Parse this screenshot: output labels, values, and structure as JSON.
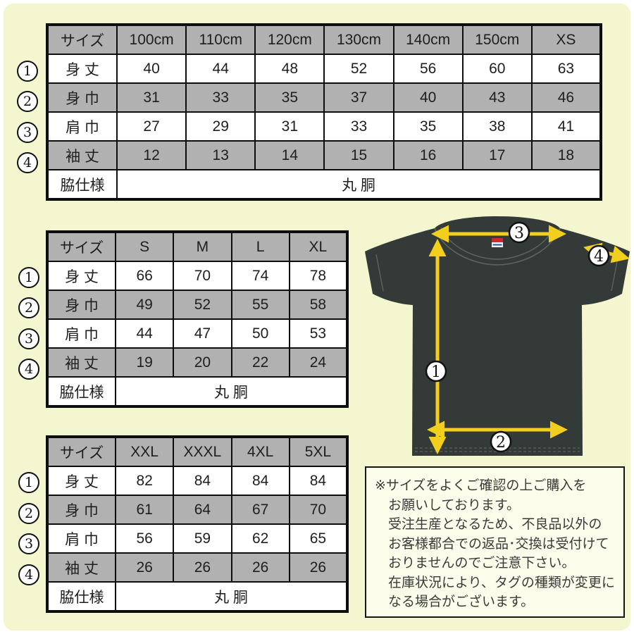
{
  "page": {
    "background_color": "#f4f6cf",
    "table_header_color": "#b1b1b1",
    "arrow_color": "#f2ce1d",
    "shirt_color": "#343a38"
  },
  "callout_digits": [
    "1",
    "2",
    "3",
    "4"
  ],
  "size_charts": [
    {
      "name": "kids-sizes",
      "columns": [
        "サイズ",
        "100cm",
        "110cm",
        "120cm",
        "130cm",
        "140cm",
        "150cm",
        "XS"
      ],
      "rows": [
        {
          "callout": "1",
          "label": "身 丈",
          "values": [
            "40",
            "44",
            "48",
            "52",
            "56",
            "60",
            "63"
          ]
        },
        {
          "callout": "2",
          "label": "身 巾",
          "values": [
            "31",
            "33",
            "35",
            "37",
            "40",
            "43",
            "46"
          ]
        },
        {
          "callout": "3",
          "label": "肩 巾",
          "values": [
            "27",
            "29",
            "31",
            "33",
            "35",
            "38",
            "41"
          ]
        },
        {
          "callout": "4",
          "label": "袖 丈",
          "values": [
            "12",
            "13",
            "14",
            "15",
            "16",
            "17",
            "18"
          ]
        }
      ],
      "side_spec_label": "脇仕様",
      "side_spec_value": "丸 胴"
    },
    {
      "name": "adult-sizes",
      "columns": [
        "サイズ",
        "S",
        "M",
        "L",
        "XL"
      ],
      "rows": [
        {
          "callout": "1",
          "label": "身 丈",
          "values": [
            "66",
            "70",
            "74",
            "78"
          ]
        },
        {
          "callout": "2",
          "label": "身 巾",
          "values": [
            "49",
            "52",
            "55",
            "58"
          ]
        },
        {
          "callout": "3",
          "label": "肩 巾",
          "values": [
            "44",
            "47",
            "50",
            "53"
          ]
        },
        {
          "callout": "4",
          "label": "袖 丈",
          "values": [
            "19",
            "20",
            "22",
            "24"
          ]
        }
      ],
      "side_spec_label": "脇仕様",
      "side_spec_value": "丸 胴"
    },
    {
      "name": "big-sizes",
      "columns": [
        "サイズ",
        "XXL",
        "XXXL",
        "4XL",
        "5XL"
      ],
      "rows": [
        {
          "callout": "1",
          "label": "身 丈",
          "values": [
            "82",
            "84",
            "84",
            "84"
          ]
        },
        {
          "callout": "2",
          "label": "身 巾",
          "values": [
            "61",
            "64",
            "67",
            "70"
          ]
        },
        {
          "callout": "3",
          "label": "肩 巾",
          "values": [
            "56",
            "59",
            "62",
            "65"
          ]
        },
        {
          "callout": "4",
          "label": "袖 丈",
          "values": [
            "26",
            "26",
            "26",
            "26"
          ]
        }
      ],
      "side_spec_label": "脇仕様",
      "side_spec_value": "丸 胴"
    }
  ],
  "diagram": {
    "callouts": {
      "body_length": "1",
      "body_width": "2",
      "shoulder_width": "3",
      "sleeve_length": "4"
    }
  },
  "note": {
    "lines": [
      "※サイズをよくご確認の上ご購入を",
      "お願いしております。",
      "受注生産となるため、不良品以外の",
      "お客様都合での返品･交換は受付けて",
      "おりませんのでご注意下さい。",
      "在庫状況により、タグの種類が変更に",
      "なる場合がございます。"
    ]
  }
}
